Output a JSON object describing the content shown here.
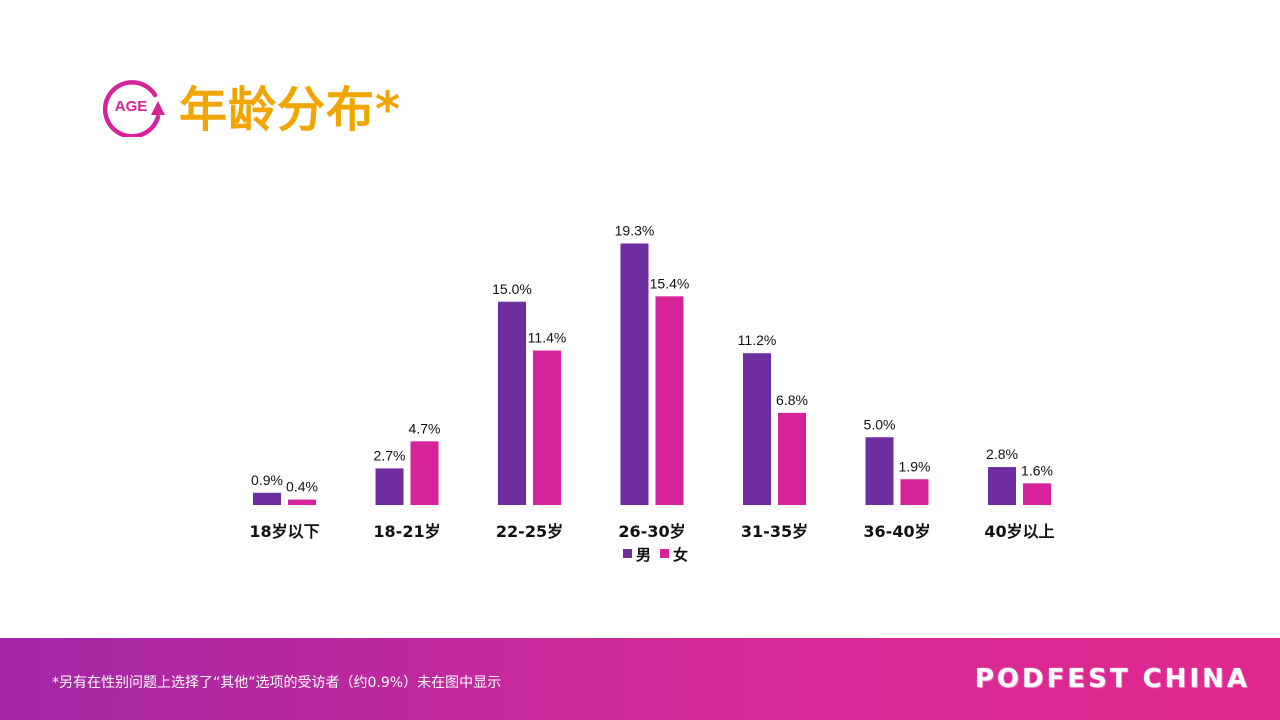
{
  "header": {
    "icon_text": "AGE",
    "icon_name": "age-cycle-icon",
    "title": "年龄分布*"
  },
  "colors": {
    "male": "#6f2ea0",
    "female": "#d6239a",
    "title": "#f0a500",
    "icon": "#d6239a"
  },
  "chart_data": {
    "type": "bar",
    "categories": [
      "18岁以下",
      "18-21岁",
      "22-25岁",
      "26-30岁",
      "31-35岁",
      "36-40岁",
      "40岁以上"
    ],
    "series": [
      {
        "name": "男",
        "values": [
          0.9,
          2.7,
          15.0,
          19.3,
          11.2,
          5.0,
          2.8
        ],
        "labels": [
          "0.9%",
          "2.7%",
          "15.0%",
          "19.3%",
          "11.2%",
          "5.0%",
          "2.8%"
        ]
      },
      {
        "name": "女",
        "values": [
          0.4,
          4.7,
          11.4,
          15.4,
          6.8,
          1.9,
          1.6
        ],
        "labels": [
          "0.4%",
          "4.7%",
          "11.4%",
          "15.4%",
          "6.8%",
          "1.9%",
          "1.6%"
        ]
      }
    ],
    "ylim": [
      0,
      20
    ],
    "grid": false,
    "legend": "bottom-center"
  },
  "footer": {
    "note": "*另有在性别问题上选择了“其他”选项的受访者（约0.9%）未在图中显示",
    "brand": "PODFEST CHINA"
  }
}
